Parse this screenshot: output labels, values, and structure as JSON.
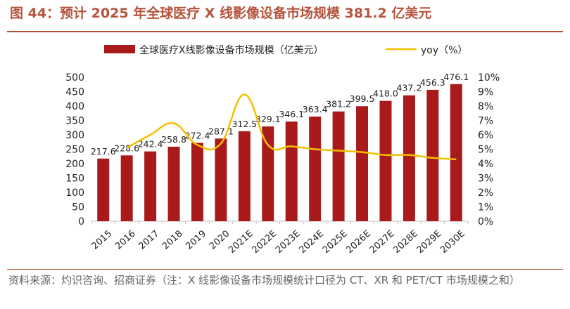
{
  "title": "图 44：预计 2025 年全球医疗 X 线影像设备市场规模 381.2 亿美元",
  "source": "资料来源：灼识咨询、招商证券（注：X 线影像设备市场规模统计口径为 CT、XR 和 PET/CT 市场规模之和）",
  "colors": {
    "bar": "#a91b1b",
    "line": "#f5c000",
    "title": "#b5533c"
  },
  "chart_data": {
    "type": "bar",
    "categories": [
      "2015",
      "2016",
      "2017",
      "2018",
      "2019",
      "2020",
      "2021E",
      "2022E",
      "2023E",
      "2024E",
      "2025E",
      "2026E",
      "2027E",
      "2028E",
      "2029E",
      "2030E"
    ],
    "series": [
      {
        "name": "全球医疗X线影像设备市场规模（亿美元）",
        "type": "bar",
        "axis": "left",
        "values": [
          217.6,
          228.6,
          242.4,
          258.8,
          272.4,
          287.1,
          312.5,
          329.1,
          346.1,
          363.4,
          381.2,
          399.5,
          418.0,
          437.2,
          456.3,
          476.1
        ],
        "labels": [
          "217.6",
          "228.6",
          "242.4",
          "258.8",
          "272.4",
          "287.1",
          "312.5",
          "329.1",
          "346.1",
          "363.4",
          "381.2",
          "399.5",
          "418.0",
          "437.2",
          "456.3",
          "476.1"
        ]
      },
      {
        "name": "yoy（%）",
        "type": "line",
        "axis": "right",
        "values": [
          null,
          5.1,
          6.0,
          6.8,
          5.3,
          5.4,
          8.8,
          5.3,
          5.2,
          5.0,
          4.9,
          4.8,
          4.6,
          4.6,
          4.4,
          4.3
        ]
      }
    ],
    "ylim": [
      0,
      500
    ],
    "yticks": [
      "0",
      "50",
      "100",
      "150",
      "200",
      "250",
      "300",
      "350",
      "400",
      "450",
      "500"
    ],
    "y2lim": [
      0,
      10
    ],
    "y2ticks": [
      "0%",
      "1%",
      "2%",
      "3%",
      "4%",
      "5%",
      "6%",
      "7%",
      "8%",
      "9%",
      "10%"
    ],
    "grid": false,
    "legend": "top"
  }
}
